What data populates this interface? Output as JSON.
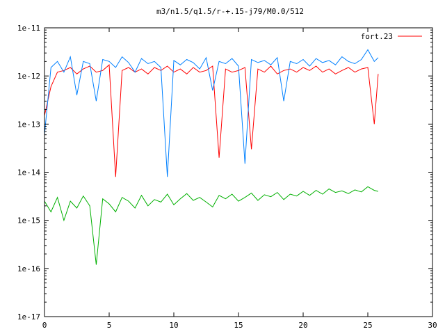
{
  "chart_data": {
    "type": "line",
    "title": "m3/n1.5/q1.5/r-+.15-j79/M0.0/512",
    "xlabel": "",
    "ylabel": "",
    "xlim": [
      0,
      30
    ],
    "ylim": [
      1e-17,
      1e-11
    ],
    "yscale": "log",
    "x_ticks": [
      0,
      5,
      10,
      15,
      20,
      25,
      30
    ],
    "x_tick_labels": [
      "0",
      "5",
      "10",
      "15",
      "20",
      "25",
      "30"
    ],
    "y_ticks": [
      1e-17,
      1e-16,
      1e-15,
      1e-14,
      1e-13,
      1e-12,
      1e-11
    ],
    "y_tick_labels": [
      "1e-17",
      "1e-16",
      "1e-15",
      "1e-14",
      "1e-13",
      "1e-12",
      "1e-11"
    ],
    "grid": false,
    "legend": {
      "position": "top-right",
      "entries": [
        {
          "name": "fort.23",
          "color": "#ff0000"
        }
      ]
    },
    "series": [
      {
        "name": "fort.23",
        "color": "#ff0000",
        "x": [
          0,
          0.5,
          1,
          1.5,
          2,
          2.5,
          3,
          3.5,
          4,
          4.5,
          5,
          5.5,
          6,
          6.5,
          7,
          7.5,
          8,
          8.5,
          9,
          9.5,
          10,
          10.5,
          11,
          11.5,
          12,
          12.5,
          13,
          13.5,
          14,
          14.5,
          15,
          15.5,
          16,
          16.5,
          17,
          17.5,
          18,
          18.5,
          19,
          19.5,
          20,
          20.5,
          21,
          21.5,
          22,
          22.5,
          23,
          23.5,
          24,
          24.5,
          25,
          25.5,
          25.8
        ],
        "values": [
          1.5e-13,
          6e-13,
          1.2e-12,
          1.3e-12,
          1.5e-12,
          1.1e-12,
          1.4e-12,
          1.6e-12,
          1.2e-12,
          1.3e-12,
          1.7e-12,
          8e-15,
          1.3e-12,
          1.5e-12,
          1.2e-12,
          1.4e-12,
          1.1e-12,
          1.5e-12,
          1.3e-12,
          1.6e-12,
          1.2e-12,
          1.4e-12,
          1.1e-12,
          1.5e-12,
          1.2e-12,
          1.3e-12,
          1.6e-12,
          2e-14,
          1.4e-12,
          1.2e-12,
          1.3e-12,
          1.5e-12,
          3e-14,
          1.4e-12,
          1.2e-12,
          1.6e-12,
          1.1e-12,
          1.3e-12,
          1.4e-12,
          1.2e-12,
          1.5e-12,
          1.3e-12,
          1.6e-12,
          1.2e-12,
          1.4e-12,
          1.1e-12,
          1.3e-12,
          1.5e-12,
          1.2e-12,
          1.4e-12,
          1.5e-12,
          1e-13,
          1.1e-12
        ]
      },
      {
        "name": "",
        "color": "#0080ff",
        "x": [
          0,
          0.5,
          1,
          1.5,
          2,
          2.5,
          3,
          3.5,
          4,
          4.5,
          5,
          5.5,
          6,
          6.5,
          7,
          7.5,
          8,
          8.5,
          9,
          9.5,
          10,
          10.5,
          11,
          11.5,
          12,
          12.5,
          13,
          13.5,
          14,
          14.5,
          15,
          15.5,
          16,
          16.5,
          17,
          17.5,
          18,
          18.5,
          19,
          19.5,
          20,
          20.5,
          21,
          21.5,
          22,
          22.5,
          23,
          23.5,
          24,
          24.5,
          25,
          25.5,
          25.8
        ],
        "values": [
          6e-14,
          1.5e-12,
          2e-12,
          1.2e-12,
          2.5e-12,
          4e-13,
          2e-12,
          1.8e-12,
          3e-13,
          2.2e-12,
          2e-12,
          1.5e-12,
          2.5e-12,
          1.9e-12,
          1.2e-12,
          2.3e-12,
          1.8e-12,
          2e-12,
          1.5e-12,
          8e-15,
          2.1e-12,
          1.7e-12,
          2.2e-12,
          1.9e-12,
          1.4e-12,
          2.4e-12,
          5e-13,
          2e-12,
          1.8e-12,
          2.3e-12,
          1.6e-12,
          1.5e-14,
          2.2e-12,
          1.9e-12,
          2.1e-12,
          1.7e-12,
          2.4e-12,
          3e-13,
          2e-12,
          1.8e-12,
          2.2e-12,
          1.6e-12,
          2.3e-12,
          1.9e-12,
          2.1e-12,
          1.7e-12,
          2.5e-12,
          2e-12,
          1.8e-12,
          2.2e-12,
          3.5e-12,
          2e-12,
          2.4e-12
        ]
      },
      {
        "name": "",
        "color": "#00b000",
        "x": [
          0,
          0.5,
          1,
          1.5,
          2,
          2.5,
          3,
          3.5,
          4,
          4.5,
          5,
          5.5,
          6,
          6.5,
          7,
          7.5,
          8,
          8.5,
          9,
          9.5,
          10,
          10.5,
          11,
          11.5,
          12,
          12.5,
          13,
          13.5,
          14,
          14.5,
          15,
          15.5,
          16,
          16.5,
          17,
          17.5,
          18,
          18.5,
          19,
          19.5,
          20,
          20.5,
          21,
          21.5,
          22,
          22.5,
          23,
          23.5,
          24,
          24.5,
          25,
          25.5,
          25.8
        ],
        "values": [
          2.5e-15,
          1.5e-15,
          3e-15,
          1e-15,
          2.5e-15,
          1.8e-15,
          3.2e-15,
          2e-15,
          1.2e-16,
          2.8e-15,
          2.2e-15,
          1.5e-15,
          3e-15,
          2.5e-15,
          1.8e-15,
          3.3e-15,
          2e-15,
          2.7e-15,
          2.4e-15,
          3.5e-15,
          2.1e-15,
          2.8e-15,
          3.6e-15,
          2.6e-15,
          3e-15,
          2.4e-15,
          1.9e-15,
          3.3e-15,
          2.8e-15,
          3.5e-15,
          2.5e-15,
          3e-15,
          3.7e-15,
          2.6e-15,
          3.4e-15,
          3.1e-15,
          3.8e-15,
          2.7e-15,
          3.5e-15,
          3.2e-15,
          4e-15,
          3.3e-15,
          4.2e-15,
          3.5e-15,
          4.5e-15,
          3.8e-15,
          4.1e-15,
          3.6e-15,
          4.3e-15,
          3.9e-15,
          5e-15,
          4.2e-15,
          4e-15
        ]
      }
    ]
  }
}
